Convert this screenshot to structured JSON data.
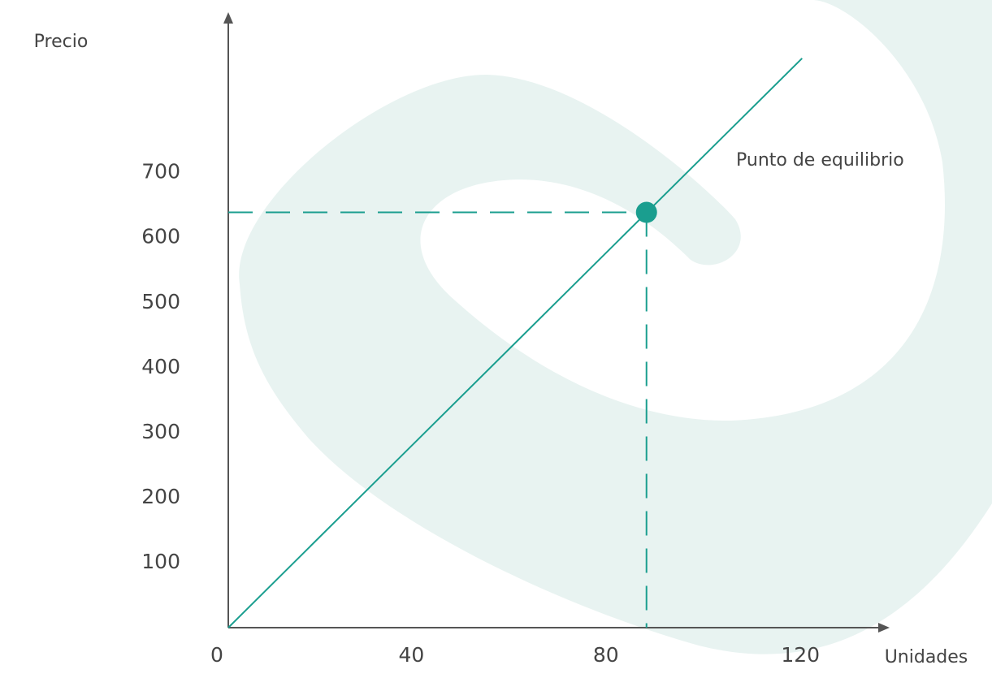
{
  "chart_data": {
    "type": "line",
    "y_label": "Precio",
    "x_label": "Unidades",
    "x": [
      0,
      118
    ],
    "series": [
      {
        "color": "#1a9e8f",
        "values": [
          0,
          876
        ]
      }
    ],
    "equilibrium": {
      "label": "Punto de equilibrio",
      "x": 86,
      "y": 639,
      "color": "#1a9e8f"
    },
    "xlim": [
      0,
      136
    ],
    "ylim": [
      0,
      947
    ],
    "xticks": [
      0,
      40,
      80,
      120
    ],
    "yticks": [
      100,
      200,
      300,
      400,
      500,
      600,
      700
    ]
  }
}
